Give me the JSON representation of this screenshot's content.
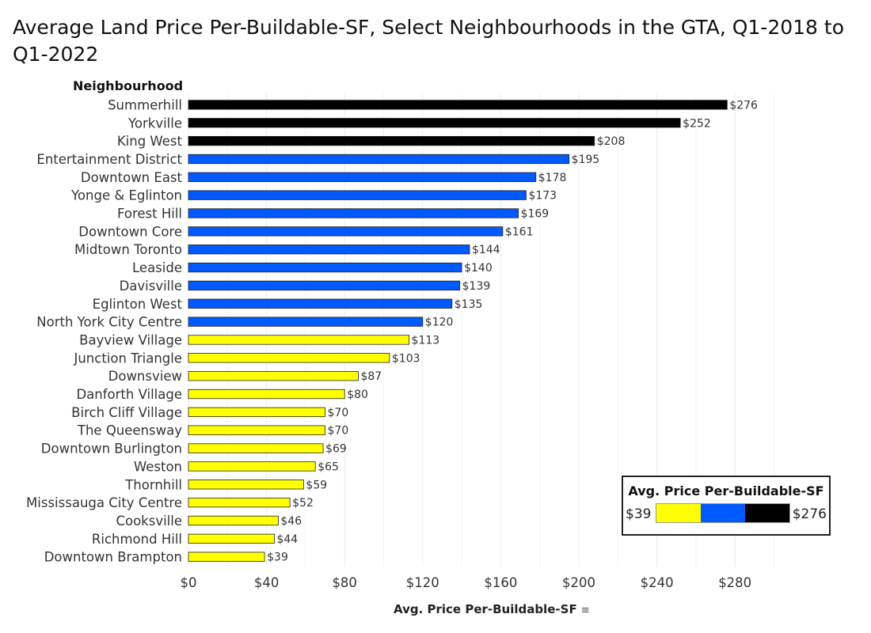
{
  "title": "Average Land Price Per-Buildable-SF, Select Neighbourhoods in the GTA, Q1-2018 to Q1-2022",
  "chart_data": {
    "type": "bar",
    "orientation": "horizontal",
    "title": "Average Land Price Per-Buildable-SF, Select Neighbourhoods in the GTA, Q1-2018 to Q1-2022",
    "dimension_header": "Neighbourhood",
    "xlabel": "Avg. Price Per-Buildable-SF",
    "ylabel": "",
    "xlim": [
      0,
      310
    ],
    "ticks": [
      0,
      40,
      80,
      120,
      160,
      200,
      240,
      280
    ],
    "tick_labels": [
      "$0",
      "$40",
      "$80",
      "$120",
      "$160",
      "$200",
      "$240",
      "$280"
    ],
    "value_prefix": "$",
    "grid": "vertical",
    "sort": "descending",
    "categories": [
      "Summerhill",
      "Yorkville",
      "King West",
      "Entertainment District",
      "Downtown East",
      "Yonge & Eglinton",
      "Forest Hill",
      "Downtown Core",
      "Midtown Toronto",
      "Leaside",
      "Davisville",
      "Eglinton West",
      "North York City Centre",
      "Bayview Village",
      "Junction Triangle",
      "Downsview",
      "Danforth Village",
      "Birch Cliff Village",
      "The Queensway",
      "Downtown Burlington",
      "Weston",
      "Thornhill",
      "Mississauga City Centre",
      "Cooksville",
      "Richmond Hill",
      "Downtown Brampton"
    ],
    "values": [
      276,
      252,
      208,
      195,
      178,
      173,
      169,
      161,
      144,
      140,
      139,
      135,
      120,
      113,
      103,
      87,
      80,
      70,
      70,
      69,
      65,
      59,
      52,
      46,
      44,
      39
    ],
    "color_scale": {
      "title": "Avg. Price Per-Buildable-SF",
      "min_label": "$39",
      "max_label": "$276",
      "min": 39,
      "max": 276,
      "colors": [
        "#ffff00",
        "#005aff",
        "#000000"
      ],
      "thresholds": [
        118,
        197
      ]
    },
    "legend_position": "bottom-right"
  }
}
